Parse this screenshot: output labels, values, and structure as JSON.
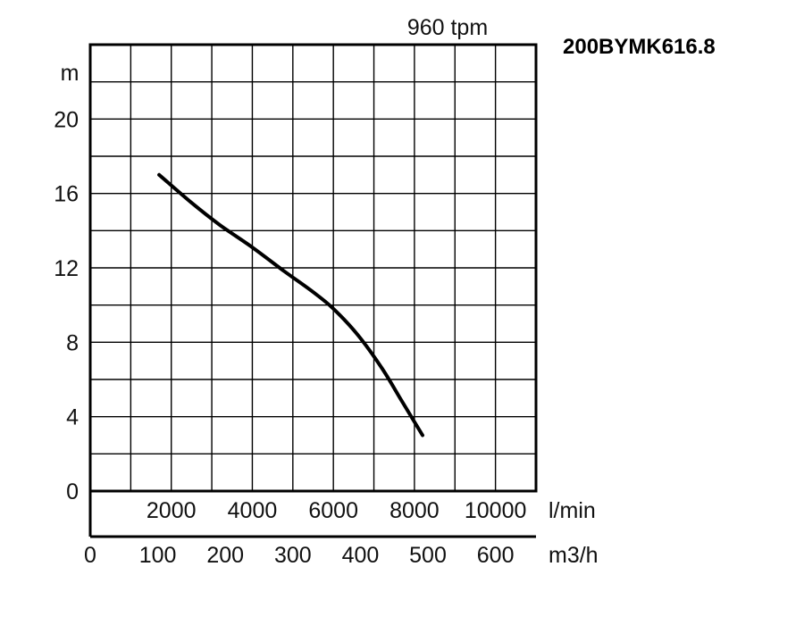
{
  "model": "200BYMK616.8",
  "speed": "960 tpm",
  "chart_data": {
    "type": "line",
    "title": "200BYMK616.8",
    "subtitle": "960 tpm",
    "ylabel": "m",
    "ylim": [
      0,
      24
    ],
    "yticks": [
      0,
      4,
      8,
      12,
      16,
      20
    ],
    "x_unit_lmin": "l/min",
    "xlim_lmin": [
      0,
      11000
    ],
    "xticks_lmin": [
      2000,
      4000,
      6000,
      8000,
      10000
    ],
    "x_unit_m3h": "m3/h",
    "xlim_m3h": [
      0,
      660
    ],
    "xticks_m3h": [
      0,
      100,
      200,
      300,
      400,
      500,
      600
    ],
    "grid": true,
    "series": [
      {
        "x": [
          1700,
          2500,
          3200,
          4000,
          4800,
          5500,
          6000,
          6600,
          7200,
          7700,
          8200
        ],
        "y": [
          17,
          15.5,
          14.3,
          13.1,
          11.8,
          10.7,
          9.8,
          8.4,
          6.6,
          4.8,
          3.0
        ]
      }
    ]
  }
}
